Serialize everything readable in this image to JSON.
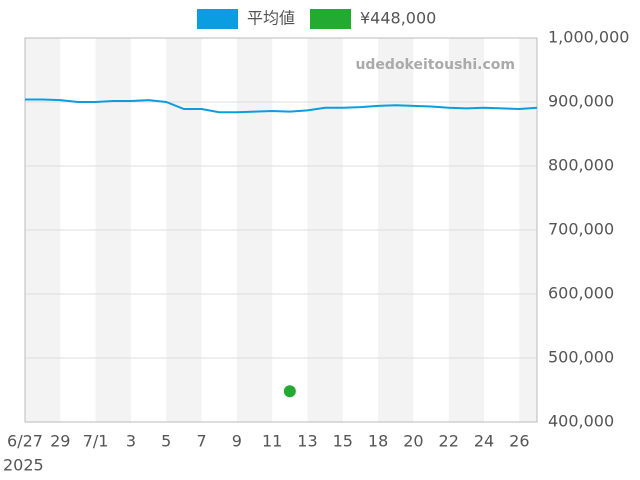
{
  "chart_data": {
    "type": "line",
    "categories": [
      "6/27",
      null,
      "29",
      null,
      "7/1",
      null,
      "3",
      null,
      "5",
      null,
      "7",
      null,
      "9",
      null,
      "11",
      null,
      "13",
      null,
      "15",
      null,
      "18",
      null,
      "20",
      null,
      "22",
      null,
      "24",
      null,
      "26",
      null
    ],
    "year_label": "2025",
    "watermark": "udedokeitoushi.com",
    "series": [
      {
        "name": "平均値",
        "color": "#0a9ee0",
        "values": [
          904000,
          904000,
          903000,
          900000,
          900000,
          901500,
          901500,
          903000,
          900000,
          889000,
          889000,
          884000,
          884000,
          885000,
          886000,
          885000,
          887000,
          891000,
          891000,
          892000,
          894000,
          895000,
          894000,
          893000,
          891000,
          890000,
          891000,
          890000,
          889000,
          891000
        ]
      },
      {
        "name": "¥448,000",
        "color": "#22aa33",
        "values": [
          null,
          null,
          null,
          null,
          null,
          null,
          null,
          null,
          null,
          null,
          null,
          null,
          null,
          null,
          null,
          448000,
          null,
          null,
          null,
          null,
          null,
          null,
          null,
          null,
          null,
          null,
          null,
          null,
          null,
          null
        ]
      }
    ],
    "ylim": [
      400000,
      1000000
    ],
    "yticks": [
      {
        "value": 400000,
        "label": "400,000"
      },
      {
        "value": 500000,
        "label": "500,000"
      },
      {
        "value": 600000,
        "label": "600,000"
      },
      {
        "value": 700000,
        "label": "700,000"
      },
      {
        "value": 800000,
        "label": "800,000"
      },
      {
        "value": 900000,
        "label": "900,000"
      },
      {
        "value": 1000000,
        "label": "1,000,000"
      }
    ],
    "grid": true
  }
}
